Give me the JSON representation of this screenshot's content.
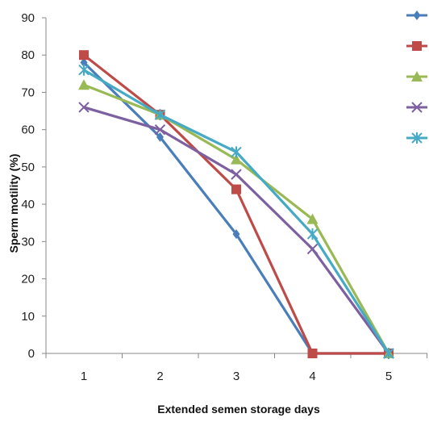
{
  "chart_data": {
    "type": "line",
    "title": "",
    "xlabel": "Extended semen storage days",
    "ylabel": "Sperm motility (%)",
    "x": [
      1,
      2,
      3,
      4,
      5
    ],
    "ylim": [
      0,
      90
    ],
    "yticks": [
      0,
      10,
      20,
      30,
      40,
      50,
      60,
      70,
      80,
      90
    ],
    "grid": false,
    "legend": "top-right",
    "series": [
      {
        "values": [
          78,
          58,
          32,
          0,
          0
        ],
        "color": "#4a7ebb",
        "marker": "diamond"
      },
      {
        "values": [
          80,
          64,
          44,
          0,
          0
        ],
        "color": "#be4b48",
        "marker": "square"
      },
      {
        "values": [
          72,
          64,
          52,
          36,
          0
        ],
        "color": "#98b954",
        "marker": "triangle"
      },
      {
        "values": [
          66,
          60,
          48,
          28,
          0
        ],
        "color": "#7d60a0",
        "marker": "x"
      },
      {
        "values": [
          76,
          64,
          54,
          32,
          0
        ],
        "color": "#46aac5",
        "marker": "star"
      }
    ]
  }
}
